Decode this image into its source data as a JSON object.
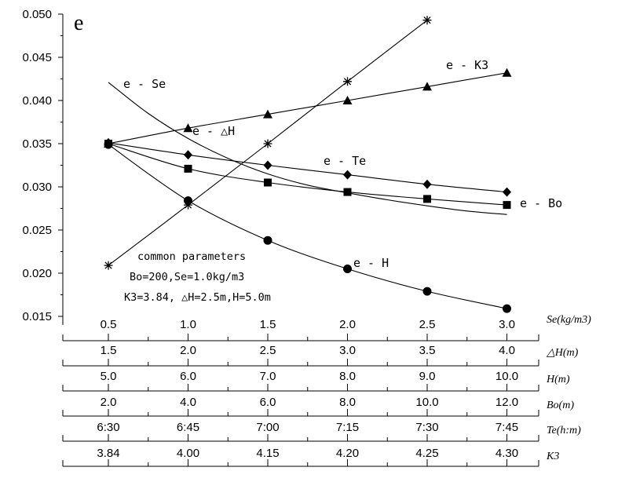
{
  "chart_data": {
    "type": "line",
    "ylabel": "e",
    "ylim": [
      0.015,
      0.05
    ],
    "yticks": [
      "0.015",
      "0.020",
      "0.025",
      "0.030",
      "0.035",
      "0.040",
      "0.045",
      "0.050"
    ],
    "ytick_values": [
      0.015,
      0.02,
      0.025,
      0.03,
      0.035,
      0.04,
      0.045,
      0.05
    ],
    "x_positions": [
      1,
      2,
      3,
      4,
      5,
      6
    ],
    "x_axes": [
      {
        "label": "Se(kg/m3)",
        "ticks": [
          "0.5",
          "1.0",
          "1.5",
          "2.0",
          "2.5",
          "3.0"
        ]
      },
      {
        "label": "△H(m)",
        "ticks": [
          "1.5",
          "2.0",
          "2.5",
          "3.0",
          "3.5",
          "4.0"
        ]
      },
      {
        "label": "H(m)",
        "ticks": [
          "5.0",
          "6.0",
          "7.0",
          "8.0",
          "9.0",
          "10.0"
        ]
      },
      {
        "label": "Bo(m)",
        "ticks": [
          "2.0",
          "4.0",
          "6.0",
          "8.0",
          "10.0",
          "12.0"
        ]
      },
      {
        "label": "Te(h:m)",
        "ticks": [
          "6:30",
          "6:45",
          "7:00",
          "7:15",
          "7:30",
          "7:45"
        ]
      },
      {
        "label": "K3",
        "ticks": [
          "3.84",
          "4.00",
          "4.15",
          "4.20",
          "4.25",
          "4.30"
        ]
      }
    ],
    "series": [
      {
        "name": "e - K3",
        "marker": "triangle",
        "values": [
          0.035,
          0.0368,
          0.0384,
          0.04,
          0.0416,
          0.0432
        ]
      },
      {
        "name": "e - Bo",
        "marker": "square",
        "values": [
          0.035,
          0.0321,
          0.0305,
          0.0294,
          0.0286,
          0.0279
        ]
      },
      {
        "name": "e - Te",
        "marker": "diamond",
        "values": [
          0.0351,
          0.0337,
          0.0325,
          0.0314,
          0.0303,
          0.0294
        ]
      },
      {
        "name": "e - H",
        "marker": "circle",
        "values": [
          0.0349,
          0.0284,
          0.0238,
          0.0205,
          0.0179,
          0.0159
        ]
      },
      {
        "name": "e - △H",
        "marker": "star",
        "values": [
          0.0209,
          0.0279,
          0.035,
          0.0422,
          0.0493
        ]
      },
      {
        "name": "e - Se",
        "marker": "none",
        "x": [
          1.0,
          1.5,
          2.0,
          2.5,
          3.0,
          3.5,
          4.0,
          4.5,
          5.0,
          5.5,
          6.0
        ],
        "values": [
          0.0421,
          0.0385,
          0.0356,
          0.0333,
          0.0315,
          0.0302,
          0.0293,
          0.0285,
          0.0278,
          0.0272,
          0.0268
        ]
      }
    ],
    "curve_labels": [
      {
        "series": "e - K3",
        "text": "e - K3"
      },
      {
        "series": "e - Se",
        "text": "e - Se"
      },
      {
        "series": "e - △H",
        "text": "e - △H"
      },
      {
        "series": "e - Te",
        "text": "e - Te"
      },
      {
        "series": "e - Bo",
        "text": "e - Bo"
      },
      {
        "series": "e - H",
        "text": "e - H"
      }
    ],
    "annotation": [
      "common parameters",
      "Bo=200,Se=1.0kg/m3",
      "K3=3.84, △H=2.5m,H=5.0m"
    ]
  }
}
